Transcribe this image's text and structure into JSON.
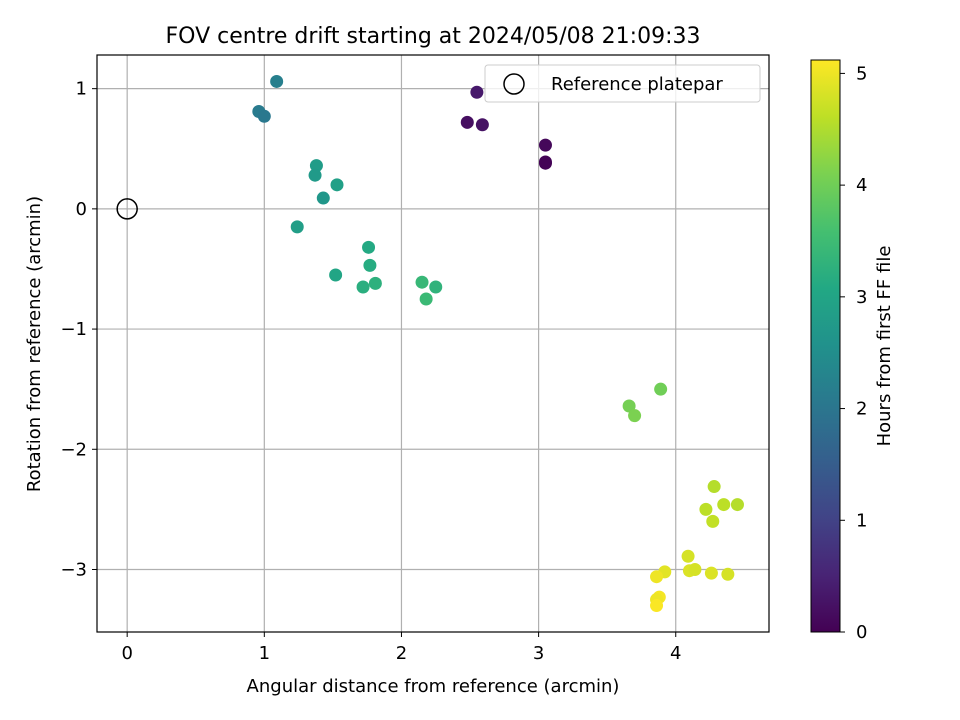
{
  "chart_data": {
    "type": "scatter",
    "title": "FOV centre drift starting at 2024/05/08 21:09:33",
    "xlabel": "Angular distance from reference (arcmin)",
    "ylabel": "Rotation from reference (arcmin)",
    "xlim": [
      -0.22,
      4.68
    ],
    "ylim": [
      -3.52,
      1.28
    ],
    "xticks": [
      0,
      1,
      2,
      3,
      4
    ],
    "xtick_labels": [
      "0",
      "1",
      "2",
      "3",
      "4"
    ],
    "yticks": [
      1,
      0,
      -1,
      -2,
      -3
    ],
    "ytick_labels": [
      "1",
      "0",
      "−1",
      "−2",
      "−3"
    ],
    "grid": true,
    "legend": {
      "position": "top-right",
      "entries": [
        "Reference platepar"
      ]
    },
    "reference_point": {
      "x": 0,
      "y": 0,
      "label": "Reference platepar"
    },
    "colorbar": {
      "label": "Hours from first FF file",
      "range": [
        0,
        5.12
      ],
      "ticks": [
        0,
        1,
        2,
        3,
        4,
        5
      ],
      "tick_labels": [
        "0",
        "1",
        "2",
        "3",
        "4",
        "5"
      ],
      "colormap": "viridis"
    },
    "points": [
      {
        "x": 2.55,
        "y": 0.97,
        "t": 0.35
      },
      {
        "x": 2.48,
        "y": 0.72,
        "t": 0.2
      },
      {
        "x": 2.59,
        "y": 0.7,
        "t": 0.25
      },
      {
        "x": 3.05,
        "y": 0.53,
        "t": 0.1
      },
      {
        "x": 3.05,
        "y": 0.39,
        "t": 0.05
      },
      {
        "x": 3.05,
        "y": 0.38,
        "t": 0.03
      },
      {
        "x": 1.09,
        "y": 1.06,
        "t": 2.2
      },
      {
        "x": 0.96,
        "y": 0.81,
        "t": 2.1
      },
      {
        "x": 1.0,
        "y": 0.77,
        "t": 2.05
      },
      {
        "x": 1.38,
        "y": 0.36,
        "t": 2.8
      },
      {
        "x": 1.37,
        "y": 0.28,
        "t": 2.75
      },
      {
        "x": 1.53,
        "y": 0.2,
        "t": 2.9
      },
      {
        "x": 1.43,
        "y": 0.09,
        "t": 2.7
      },
      {
        "x": 1.24,
        "y": -0.15,
        "t": 2.85
      },
      {
        "x": 1.76,
        "y": -0.32,
        "t": 3.1
      },
      {
        "x": 1.77,
        "y": -0.47,
        "t": 3.15
      },
      {
        "x": 1.52,
        "y": -0.55,
        "t": 3.0
      },
      {
        "x": 1.72,
        "y": -0.65,
        "t": 3.2
      },
      {
        "x": 1.81,
        "y": -0.62,
        "t": 3.25
      },
      {
        "x": 2.15,
        "y": -0.61,
        "t": 3.4
      },
      {
        "x": 2.25,
        "y": -0.65,
        "t": 3.3
      },
      {
        "x": 2.18,
        "y": -0.75,
        "t": 3.45
      },
      {
        "x": 3.89,
        "y": -1.5,
        "t": 4.0
      },
      {
        "x": 3.66,
        "y": -1.64,
        "t": 4.05
      },
      {
        "x": 3.7,
        "y": -1.72,
        "t": 4.1
      },
      {
        "x": 4.28,
        "y": -2.31,
        "t": 4.55
      },
      {
        "x": 4.35,
        "y": -2.46,
        "t": 4.6
      },
      {
        "x": 4.45,
        "y": -2.46,
        "t": 4.55
      },
      {
        "x": 4.22,
        "y": -2.5,
        "t": 4.6
      },
      {
        "x": 4.27,
        "y": -2.6,
        "t": 4.65
      },
      {
        "x": 4.09,
        "y": -2.89,
        "t": 4.8
      },
      {
        "x": 4.1,
        "y": -3.01,
        "t": 4.85
      },
      {
        "x": 4.14,
        "y": -3.0,
        "t": 4.8
      },
      {
        "x": 3.92,
        "y": -3.02,
        "t": 4.9
      },
      {
        "x": 4.26,
        "y": -3.03,
        "t": 4.85
      },
      {
        "x": 4.38,
        "y": -3.04,
        "t": 4.8
      },
      {
        "x": 3.86,
        "y": -3.06,
        "t": 5.0
      },
      {
        "x": 3.88,
        "y": -3.23,
        "t": 5.05
      },
      {
        "x": 3.86,
        "y": -3.25,
        "t": 5.0
      },
      {
        "x": 3.86,
        "y": -3.3,
        "t": 5.1
      }
    ]
  }
}
